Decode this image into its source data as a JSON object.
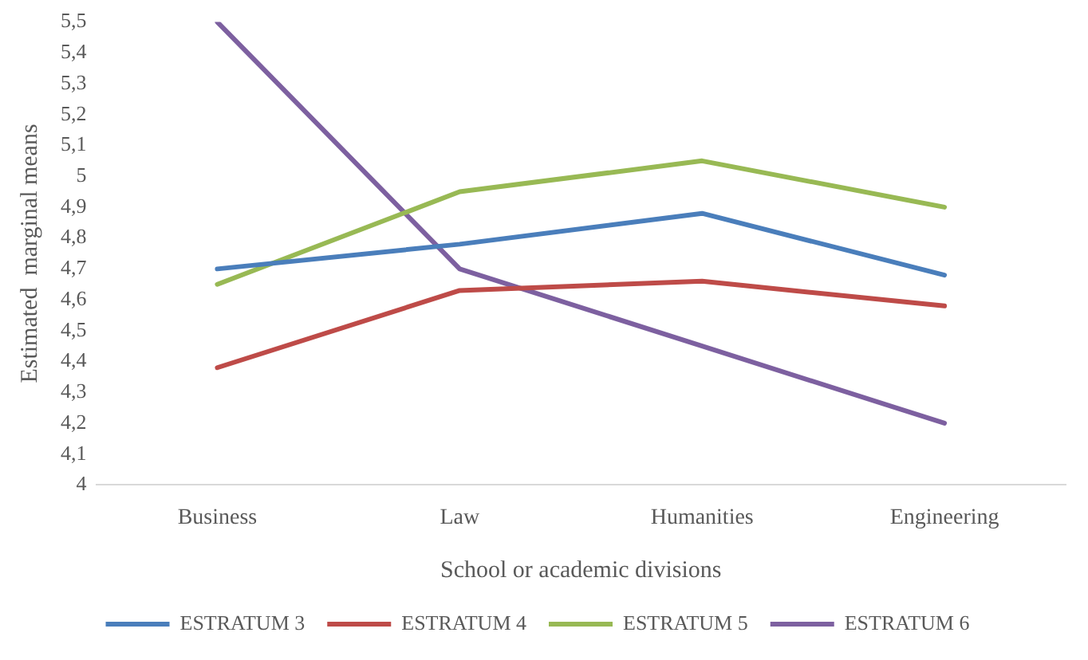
{
  "chart_data": {
    "type": "line",
    "xlabel": "School or academic divisions",
    "ylabel": "Estimated  marginal means",
    "categories": [
      "Business",
      "Law",
      "Humanities",
      "Engineering"
    ],
    "series": [
      {
        "name": "ESTRATUM 3",
        "color": "#4a7ebb",
        "values": [
          4.7,
          4.78,
          4.88,
          4.68
        ]
      },
      {
        "name": "ESTRATUM 4",
        "color": "#be4b48",
        "values": [
          4.38,
          4.63,
          4.66,
          4.58
        ]
      },
      {
        "name": "ESTRATUM 5",
        "color": "#98b954",
        "values": [
          4.65,
          4.95,
          5.05,
          4.9
        ]
      },
      {
        "name": "ESTRATUM 6",
        "color": "#7d60a0",
        "values": [
          5.5,
          4.7,
          4.45,
          4.2
        ]
      }
    ],
    "ylim": [
      4,
      5.5
    ],
    "yticks": [
      4,
      {
        "value": 4.1,
        "label": "4,1"
      },
      {
        "value": 4.2,
        "label": "4,2"
      },
      {
        "value": 4.3,
        "label": "4,3"
      },
      {
        "value": 4.4,
        "label": "4,4"
      },
      {
        "value": 4.5,
        "label": "4,5"
      },
      {
        "value": 4.6,
        "label": "4,6"
      },
      {
        "value": 4.7,
        "label": "4,7"
      },
      {
        "value": 4.8,
        "label": "4,8"
      },
      {
        "value": 4.9,
        "label": "4,9"
      },
      5,
      {
        "value": 5.1,
        "label": "5,1"
      },
      {
        "value": 5.2,
        "label": "5,2"
      },
      {
        "value": 5.3,
        "label": "5,3"
      },
      {
        "value": 5.4,
        "label": "5,4"
      },
      {
        "value": 5.5,
        "label": "5,5"
      }
    ],
    "grid": false,
    "legend": "bottom",
    "marker": "none",
    "line_style": "solid"
  }
}
